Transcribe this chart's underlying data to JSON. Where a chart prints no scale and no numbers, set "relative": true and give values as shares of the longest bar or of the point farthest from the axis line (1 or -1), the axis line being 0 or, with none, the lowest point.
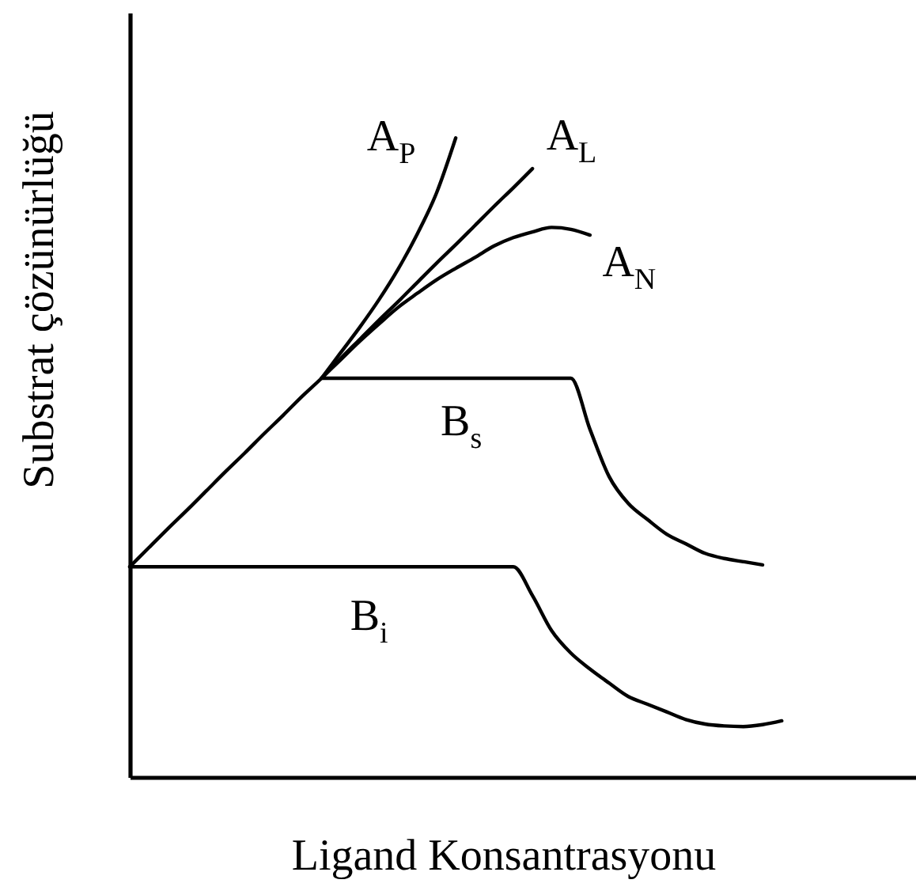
{
  "chart_data": {
    "type": "line",
    "relative": true,
    "tick_labels": false,
    "xlabel": "Ligand Konsantrasyonu",
    "ylabel": "Substrat çözünürlüğü",
    "categories": [
      null,
      null,
      null,
      null,
      null,
      null,
      null,
      null,
      null,
      null,
      null,
      null,
      null,
      null,
      null,
      null,
      null,
      null,
      null,
      null,
      null,
      null,
      null,
      null,
      null,
      null,
      null,
      null,
      null,
      null,
      null,
      null,
      null,
      null,
      null,
      null,
      null,
      null,
      null,
      null,
      null,
      null
    ],
    "series": [
      {
        "name": "A$_{P}$",
        "color": "#000000",
        "values": [
          null,
          null,
          null,
          null,
          null,
          null,
          null,
          null,
          null,
          null,
          0.624,
          0.664,
          0.704,
          0.747,
          0.795,
          0.85,
          0.914,
          1.0,
          null,
          null,
          null,
          null,
          null,
          null,
          null,
          null,
          null,
          null,
          null,
          null,
          null,
          null,
          null,
          null,
          null,
          null,
          null,
          null,
          null,
          null,
          null,
          null
        ]
      },
      {
        "name": "A$_{L}$",
        "color": "#000000",
        "values": [
          0.329,
          0.359,
          0.389,
          0.418,
          0.448,
          0.478,
          0.507,
          0.537,
          0.566,
          0.596,
          0.624,
          0.655,
          0.685,
          0.715,
          0.744,
          0.774,
          0.804,
          0.833,
          0.863,
          0.893,
          0.922,
          0.952,
          null,
          null,
          null,
          null,
          null,
          null,
          null,
          null,
          null,
          null,
          null,
          null,
          null,
          null,
          null,
          null,
          null,
          null,
          null,
          null
        ]
      },
      {
        "name": "A$_{N}$",
        "color": "#000000",
        "values": [
          null,
          null,
          null,
          null,
          null,
          null,
          null,
          null,
          null,
          null,
          0.624,
          0.653,
          0.682,
          0.709,
          0.735,
          0.757,
          0.778,
          0.796,
          0.813,
          0.831,
          0.844,
          0.853,
          0.86,
          0.857,
          0.848,
          null,
          null,
          null,
          null,
          null,
          null,
          null,
          null,
          null,
          null,
          null,
          null,
          null,
          null,
          null,
          null,
          null
        ]
      },
      {
        "name": "B$_{s}$",
        "color": "#000000",
        "values": [
          null,
          null,
          null,
          null,
          null,
          null,
          null,
          null,
          null,
          null,
          0.624,
          0.624,
          0.624,
          0.624,
          0.624,
          0.624,
          0.624,
          0.624,
          0.624,
          0.624,
          0.624,
          0.624,
          0.624,
          0.624,
          0.544,
          0.47,
          0.428,
          0.403,
          0.38,
          0.365,
          0.35,
          0.342,
          0.337,
          0.332,
          null,
          null,
          null,
          null,
          null,
          null,
          null,
          null
        ]
      },
      {
        "name": "B$_{i}$",
        "color": "#000000",
        "values": [
          0.329,
          0.329,
          0.329,
          0.329,
          0.329,
          0.329,
          0.329,
          0.329,
          0.329,
          0.329,
          0.329,
          0.329,
          0.329,
          0.329,
          0.329,
          0.329,
          0.329,
          0.329,
          0.329,
          0.329,
          0.329,
          0.284,
          0.229,
          0.194,
          0.169,
          0.147,
          0.126,
          0.114,
          0.102,
          0.09,
          0.083,
          0.08,
          0.079,
          0.082,
          0.088,
          null,
          null,
          null,
          null,
          null,
          null,
          null
        ]
      }
    ]
  }
}
